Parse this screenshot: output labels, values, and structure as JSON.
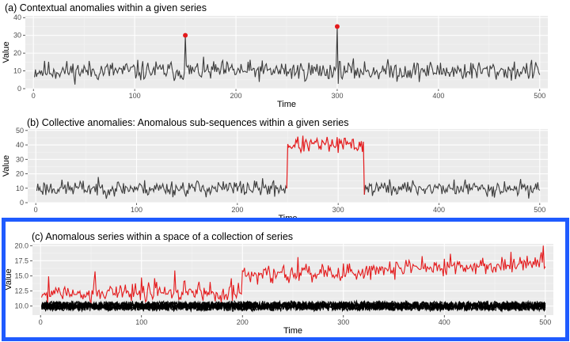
{
  "colors": {
    "panel_bg": "#ebebeb",
    "grid_major": "#ffffff",
    "normal_series": "#3d3d3d",
    "anomaly_series": "#e41a1c",
    "collection_normal": "#000000",
    "highlight_border": "#1f5bff"
  },
  "chart_data": [
    {
      "type": "line",
      "title": "(a) Contextual anomalies within a  given series",
      "xlabel": "Time",
      "ylabel": "Value",
      "xlim": [
        -8,
        508
      ],
      "ylim": [
        0,
        41
      ],
      "x_ticks": [
        0,
        100,
        200,
        300,
        400,
        500
      ],
      "y_ticks": [
        0,
        10,
        20,
        30,
        40
      ],
      "grid": true,
      "series": [
        {
          "x_start": 1,
          "x_end": 500,
          "mean": 10,
          "spread": 3.5,
          "min": 0,
          "max": 20,
          "seed": 11
        }
      ],
      "anomalies": [
        {
          "x": 150,
          "y": 30
        },
        {
          "x": 300,
          "y": 35
        }
      ]
    },
    {
      "type": "line",
      "title": "(b) Collective anomalies: Anomalous sub-sequences within a given series",
      "xlabel": "Time",
      "ylabel": "Value",
      "xlim": [
        -8,
        508
      ],
      "ylim": [
        0,
        51
      ],
      "x_ticks": [
        0,
        100,
        200,
        300,
        400,
        500
      ],
      "y_ticks": [
        0,
        10,
        20,
        30,
        40,
        50
      ],
      "grid": true,
      "series": [
        {
          "x_start": 1,
          "x_end": 500,
          "mean": 10,
          "spread": 3.5,
          "min": 0,
          "max": 18,
          "seed": 23
        }
      ],
      "anomalous_segment": {
        "x_start": 250,
        "x_end": 325,
        "mean": 40,
        "spread": 3.5,
        "min": 33,
        "max": 48
      }
    },
    {
      "type": "line",
      "title": "(c) Anomalous series within a space of a collection of series",
      "xlabel": "Time",
      "ylabel": "Value",
      "xlim": [
        -8,
        508
      ],
      "ylim": [
        8.5,
        20.3
      ],
      "x_ticks": [
        0,
        100,
        200,
        300,
        400,
        500
      ],
      "y_ticks": [
        10.0,
        12.5,
        15.0,
        17.5,
        20.0
      ],
      "grid": true,
      "normal_series_count": 12,
      "normal_series": {
        "x_start": 1,
        "x_end": 500,
        "mean": 10,
        "spread": 0.45,
        "min": 9.0,
        "max": 11.3
      },
      "anomalous_series": {
        "x_start": 1,
        "x_end": 500,
        "segments": [
          {
            "from": 1,
            "to": 200,
            "mean": 12.0,
            "spread": 0.9
          },
          {
            "from": 200,
            "to": 500,
            "mean_start": 15.0,
            "mean_end": 17.0,
            "spread": 0.9
          }
        ],
        "min": 10.5,
        "max": 20.0
      }
    }
  ]
}
